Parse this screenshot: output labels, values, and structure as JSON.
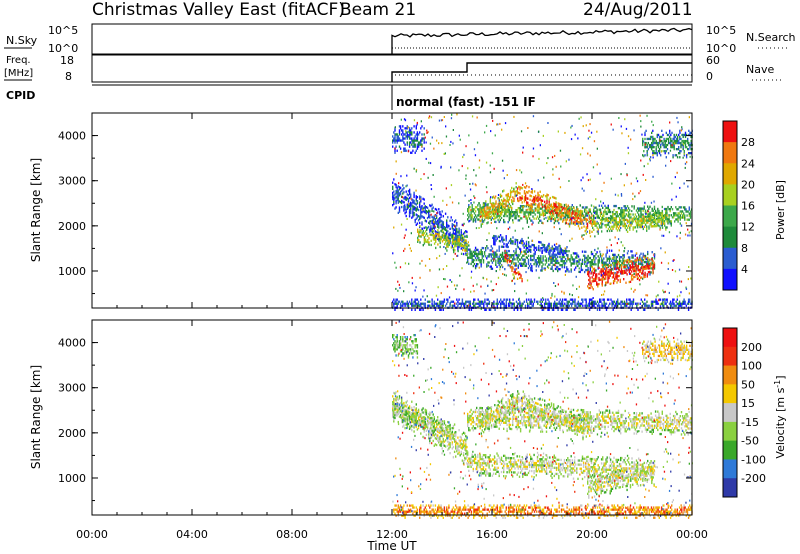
{
  "header": {
    "title": "Christmas Valley East (fitACF)",
    "beam": "Beam 21",
    "date": "24/Aug/2011"
  },
  "nsky_panel": {
    "left_label": "N.Sky",
    "left_ticks": [
      "10^5",
      "10^0"
    ],
    "right_ticks": [
      "10^5",
      "10^0"
    ],
    "right_label": "N.Search"
  },
  "freq_panel": {
    "left_label_line1": "Freq.",
    "left_label_line2": "[MHz]",
    "left_ticks": [
      "18",
      "8"
    ],
    "right_ticks": [
      "60",
      "0"
    ],
    "right_label": "Nave"
  },
  "cpid": {
    "label": "CPID",
    "text": "normal (fast) -151 IF"
  },
  "colors": {
    "power": [
      "#1010ff",
      "#2a5cd0",
      "#1e8a3a",
      "#3ca84a",
      "#a8d020",
      "#e0a800",
      "#f07810",
      "#ee1010"
    ],
    "velocity": [
      "#2f3aa8",
      "#2f7ad8",
      "#3aa82a",
      "#8ad040",
      "#c8c8c8",
      "#f4c800",
      "#f08c10",
      "#ee3010",
      "#ee1010"
    ]
  },
  "chart_data": [
    {
      "type": "heatmap",
      "name": "power",
      "ylabel": "Slant Range [km]",
      "yticks": [
        "4000",
        "3000",
        "2000",
        "1000"
      ],
      "ylim": [
        180,
        4500
      ],
      "xlim": [
        "00:00",
        "24:00"
      ],
      "colorbar_label": "Power [dB]",
      "colorbar_ticks": [
        "28",
        "24",
        "20",
        "16",
        "12",
        "8",
        "4"
      ],
      "data_start": "12:00",
      "bands": [
        {
          "t0": 12.0,
          "t1": 15.0,
          "r0": 2700,
          "r1": 1600,
          "w": 350,
          "level": 1
        },
        {
          "t0": 13.0,
          "t1": 15.0,
          "r0": 1800,
          "r1": 1550,
          "w": 220,
          "level": 4
        },
        {
          "t0": 15.0,
          "t1": 24.0,
          "r0": 2300,
          "r1": 2200,
          "w": 220,
          "level": 3
        },
        {
          "t0": 15.5,
          "t1": 17.0,
          "r0": 2200,
          "r1": 2700,
          "w": 250,
          "level": 5
        },
        {
          "t0": 17.0,
          "t1": 20.0,
          "r0": 2700,
          "r1": 2000,
          "w": 250,
          "level": 6
        },
        {
          "t0": 20.0,
          "t1": 23.0,
          "r0": 2000,
          "r1": 2100,
          "w": 200,
          "level": 4
        },
        {
          "t0": 15.0,
          "t1": 22.5,
          "r0": 1300,
          "r1": 1150,
          "w": 250,
          "level": 2
        },
        {
          "t0": 19.8,
          "t1": 22.5,
          "r0": 800,
          "r1": 1100,
          "w": 250,
          "level": 7
        },
        {
          "t0": 16.5,
          "t1": 17.2,
          "r0": 1300,
          "r1": 750,
          "w": 150,
          "level": 6
        },
        {
          "t0": 12.0,
          "t1": 24.0,
          "r0": 250,
          "r1": 250,
          "w": 130,
          "level": 1
        },
        {
          "t0": 12.0,
          "t1": 13.3,
          "r0": 3900,
          "r1": 3900,
          "w": 300,
          "level": 1
        },
        {
          "t0": 22.0,
          "t1": 24.0,
          "r0": 3800,
          "r1": 3800,
          "w": 300,
          "level": 2
        },
        {
          "t0": 16.0,
          "t1": 19.0,
          "r0": 1700,
          "r1": 1400,
          "w": 120,
          "level": 1
        }
      ]
    },
    {
      "type": "heatmap",
      "name": "velocity",
      "ylabel": "Slant Range [km]",
      "yticks": [
        "4000",
        "3000",
        "2000",
        "1000"
      ],
      "ylim": [
        180,
        4500
      ],
      "xlim": [
        "00:00",
        "24:00"
      ],
      "colorbar_label": "Velocity [m s^-1]",
      "colorbar_ticks": [
        "200",
        "100",
        "50",
        "15",
        "-15",
        "-50",
        "-100",
        "-200"
      ],
      "data_start": "12:00",
      "bands": [
        {
          "t0": 12.0,
          "t1": 15.0,
          "r0": 2600,
          "r1": 1600,
          "w": 350,
          "level": 4
        },
        {
          "t0": 15.0,
          "t1": 24.0,
          "r0": 2300,
          "r1": 2200,
          "w": 260,
          "level": 4
        },
        {
          "t0": 15.5,
          "t1": 17.0,
          "r0": 2200,
          "r1": 2700,
          "w": 250,
          "level": 4
        },
        {
          "t0": 17.0,
          "t1": 20.0,
          "r0": 2700,
          "r1": 2000,
          "w": 250,
          "level": 4
        },
        {
          "t0": 15.0,
          "t1": 22.5,
          "r0": 1300,
          "r1": 1150,
          "w": 250,
          "level": 4
        },
        {
          "t0": 19.8,
          "t1": 22.5,
          "r0": 800,
          "r1": 1100,
          "w": 260,
          "level": 4
        },
        {
          "t0": 12.0,
          "t1": 24.0,
          "r0": 250,
          "r1": 250,
          "w": 150,
          "level": 6
        },
        {
          "t0": 12.0,
          "t1": 13.0,
          "r0": 3900,
          "r1": 3900,
          "w": 250,
          "level": 3
        },
        {
          "t0": 22.0,
          "t1": 24.0,
          "r0": 3800,
          "r1": 3800,
          "w": 250,
          "level": 5
        },
        {
          "t0": 12.0,
          "t1": 14.5,
          "r0": 2500,
          "r1": 2000,
          "w": 200,
          "level": 3
        }
      ]
    }
  ],
  "x_axis": {
    "ticks": [
      "00:00",
      "04:00",
      "08:00",
      "12:00",
      "16:00",
      "20:00",
      "00:00"
    ],
    "label": "Time UT"
  }
}
